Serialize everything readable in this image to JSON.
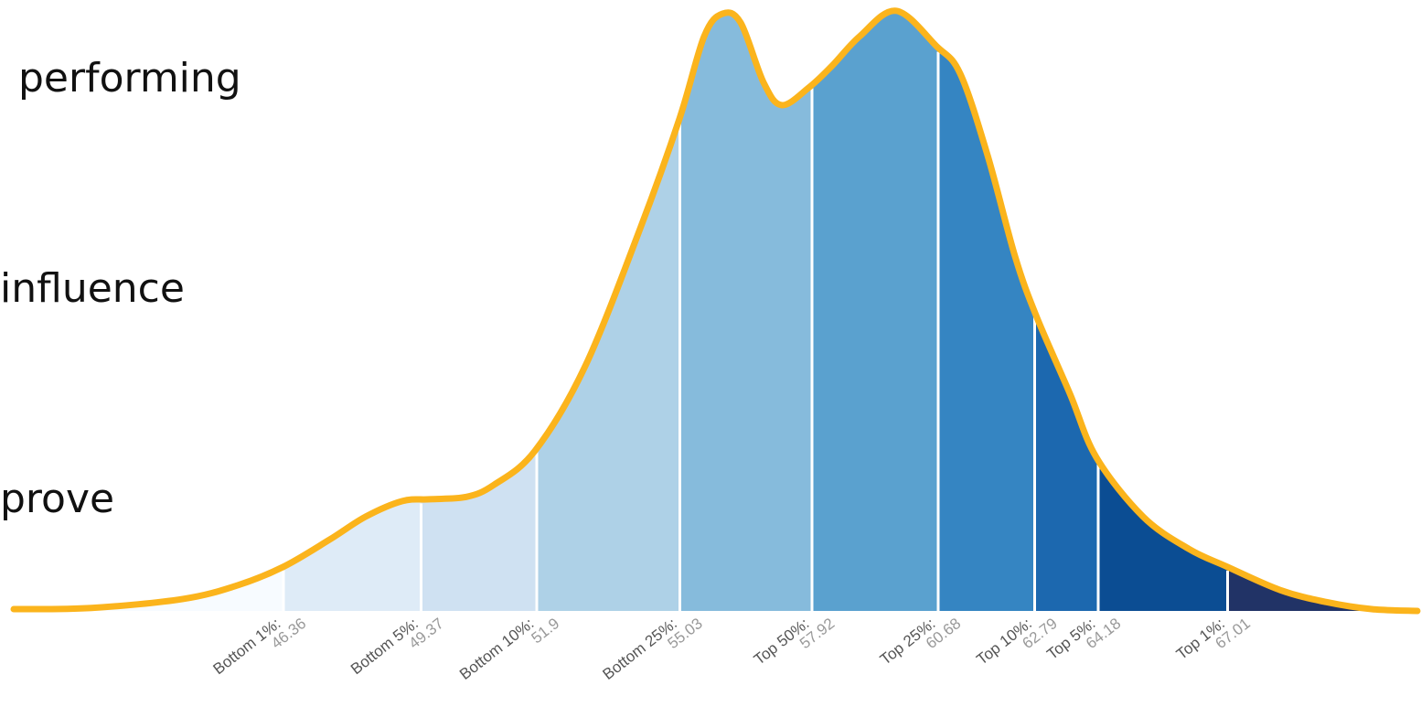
{
  "texts": [
    "performing",
    "influence",
    "prove"
  ],
  "chart_data": {
    "type": "density",
    "x": [
      40.46,
      42.16,
      44.16,
      45.36,
      46.36,
      47.36,
      48.16,
      48.96,
      49.56,
      50.36,
      50.96,
      51.86,
      52.96,
      54.16,
      55.02,
      55.56,
      55.96,
      56.36,
      56.86,
      57.26,
      57.86,
      58.36,
      58.96,
      59.76,
      60.64,
      61.16,
      61.76,
      62.36,
      62.82,
      63.56,
      64.14,
      65.16,
      66.16,
      67.0,
      68.16,
      69.16,
      70.16,
      71.16
    ],
    "values": [
      0.3,
      0.5,
      2,
      4.3,
      7.4,
      11.9,
      15.8,
      18.4,
      18.7,
      19.1,
      21.1,
      26.8,
      41,
      64,
      82.4,
      96.2,
      100,
      98.5,
      88.5,
      84.7,
      87.7,
      91.3,
      96.2,
      100.5,
      94.6,
      90,
      76.3,
      59.4,
      49.5,
      36.4,
      25.7,
      15.8,
      10.4,
      7.4,
      3.5,
      1.5,
      0.3,
      0
    ],
    "xlim": [
      40.46,
      71.24
    ],
    "ylim": [
      0,
      102
    ],
    "line_color": "#fbb41c",
    "band_colors": [
      "#f7fbff",
      "#deebf7",
      "#cfe1f2",
      "#aed1e7",
      "#86bbdc",
      "#5aa1cf",
      "#3585c2",
      "#1c68af",
      "#0b4d93",
      "#213366"
    ],
    "markers": [
      {
        "label": "Bottom 1%:",
        "value": 46.36
      },
      {
        "label": "Bottom 5%:",
        "value": 49.37
      },
      {
        "label": "Bottom 10%:",
        "value": 51.9
      },
      {
        "label": "Bottom 25%:",
        "value": 55.03
      },
      {
        "label": "Top 50%:",
        "value": 57.92
      },
      {
        "label": "Top 25%:",
        "value": 60.68
      },
      {
        "label": "Top 10%:",
        "value": 62.79
      },
      {
        "label": "Top 5%:",
        "value": 64.18
      },
      {
        "label": "Top 1%:",
        "value": 67.01
      }
    ]
  }
}
